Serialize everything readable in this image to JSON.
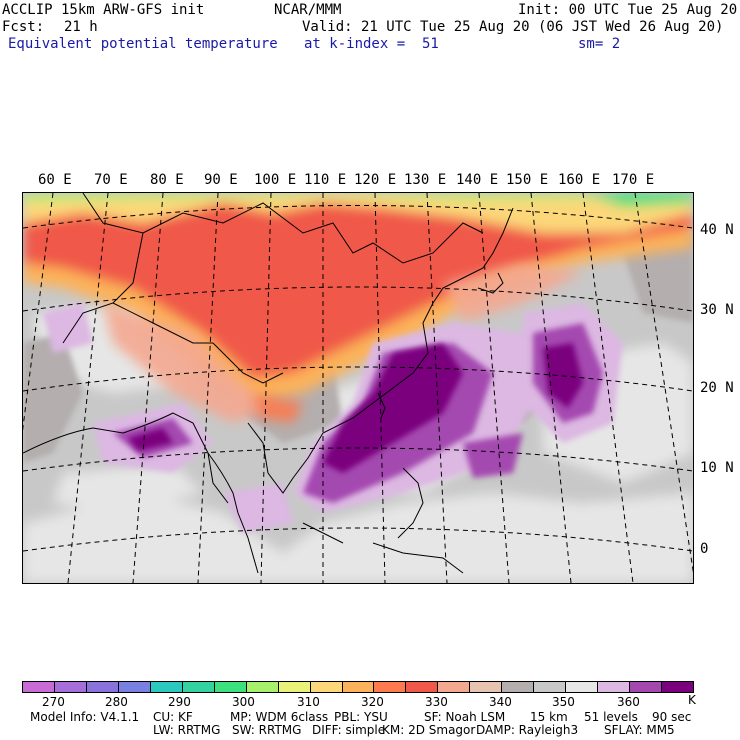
{
  "header": {
    "title": "ACCLIP 15km ARW-GFS init",
    "center": "NCAR/MMM",
    "init": "Init: 00 UTC Tue 25 Aug 20",
    "fcst_label": "Fcst:",
    "fcst_value": "21 h",
    "valid": "Valid: 21 UTC Tue 25 Aug 20 (06 JST Wed 26 Aug 20)",
    "field": "Equivalent potential temperature",
    "level": "at k-index =  51",
    "smooth": "sm= 2"
  },
  "map": {
    "lon_labels": [
      "60 E",
      "70 E",
      "80 E",
      "90 E",
      "100 E",
      "110 E",
      "120 E",
      "130 E",
      "140 E",
      "150 E",
      "160 E",
      "170 E"
    ],
    "lat_labels": [
      "40 N",
      "30 N",
      "20 N",
      "10 N",
      "0"
    ]
  },
  "colorbar": {
    "unit": "K",
    "colors": [
      "#c86bd4",
      "#a56ed8",
      "#8a72dc",
      "#7a80e2",
      "#2bc8c0",
      "#34d2a0",
      "#3ce07c",
      "#a6f06c",
      "#e8f278",
      "#fcd87a",
      "#fcb25a",
      "#fc7a4e",
      "#f0584a",
      "#f4a890",
      "#e6c4b0",
      "#b4aeae",
      "#c8c8c8",
      "#e6e6e6",
      "#dcb8e2",
      "#a448b0",
      "#7a007e"
    ],
    "labels": [
      "270",
      "280",
      "290",
      "300",
      "310",
      "320",
      "330",
      "340",
      "350",
      "360"
    ]
  },
  "footer": {
    "line1": [
      "Model Info: V4.1.1",
      "CU: KF",
      "MP: WDM 6class",
      "PBL: YSU",
      "SF: Noah LSM",
      "15 km",
      "51 levels",
      "90 sec"
    ],
    "line2": [
      "LW: RRTMG",
      "SW: RRTMG",
      "DIFF: simple",
      "KM: 2D Smagor",
      "DAMP: Rayleigh3",
      "SFLAY: MM5"
    ]
  }
}
